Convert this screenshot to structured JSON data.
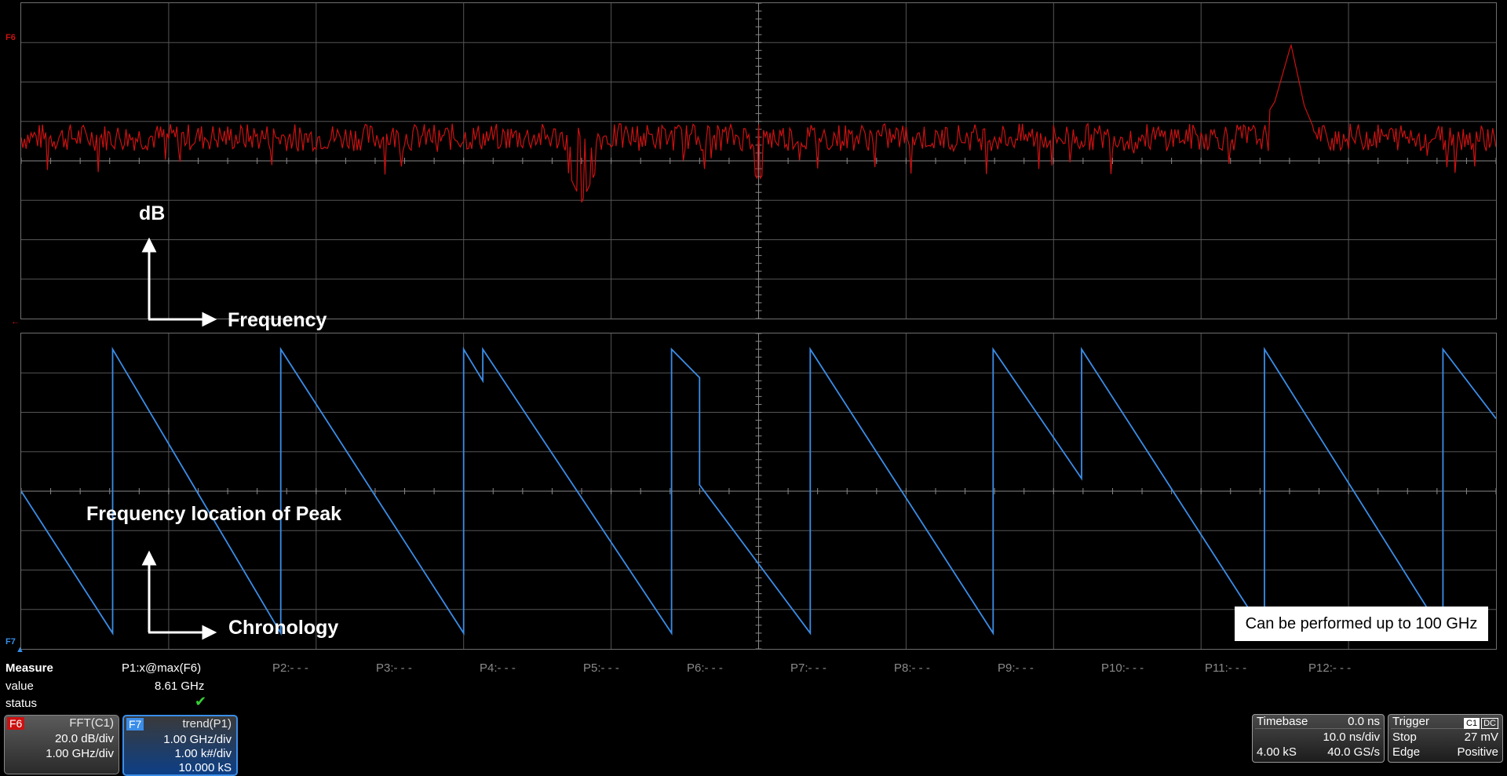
{
  "annotations": {
    "y_axis": "dB",
    "x_axis_top": "Frequency",
    "trend_label": "Frequency location of Peak",
    "x_axis_bottom": "Chronology",
    "note": "Can be performed up to 100 GHz"
  },
  "channels": {
    "f6": {
      "tag": "F6",
      "name": "FFT(C1)",
      "vdiv": "20.0 dB/div",
      "hdiv": "1.00 GHz/div",
      "color": "#cc1111"
    },
    "f7": {
      "tag": "F7",
      "name": "trend(P1)",
      "vdiv": "1.00 GHz/div",
      "hdiv": "1.00 k#/div",
      "samples": "10.000 kS",
      "color": "#3a8de8"
    }
  },
  "measure": {
    "header": "Measure",
    "row_value": "value",
    "row_status": "status",
    "p1_label": "P1:x@max(F6)",
    "p1_value": "8.61 GHz",
    "status_icon": "check-icon",
    "params": [
      "P2:- - -",
      "P3:- - -",
      "P4:- - -",
      "P5:- - -",
      "P6:- - -",
      "P7:- - -",
      "P8:- - -",
      "P9:- - -",
      "P10:- - -",
      "P11:- - -",
      "P12:- - -"
    ]
  },
  "timebase": {
    "label": "Timebase",
    "delay": "0.0 ns",
    "tdiv": "10.0 ns/div",
    "samples": "4.00 kS",
    "rate": "40.0 GS/s"
  },
  "trigger": {
    "label": "Trigger",
    "source": "C1",
    "coupling": "DC",
    "mode": "Stop",
    "level": "27 mV",
    "type": "Edge",
    "slope": "Positive"
  },
  "colors": {
    "fft_trace": "#cc1111",
    "trend_trace": "#3a8de8",
    "grid": "#6e6e6e",
    "accent_blue": "#3a8de8"
  },
  "chart_data": [
    {
      "type": "line",
      "name": "FFT(C1)",
      "xlabel": "Frequency",
      "ylabel": "dB",
      "x_range_ghz": [
        0,
        10
      ],
      "y_range_db": [
        -100,
        60
      ],
      "peak": {
        "x": 8.61,
        "y": 39
      },
      "noise_floor_db": -8,
      "series": [
        {
          "name": "F6",
          "x": [
            0.0,
            0.4,
            0.8,
            1.2,
            1.6,
            2.0,
            2.4,
            2.8,
            3.2,
            3.6,
            3.8,
            4.0,
            4.4,
            4.8,
            5.0,
            5.2,
            5.6,
            6.0,
            6.4,
            6.8,
            7.2,
            7.6,
            8.0,
            8.4,
            8.5,
            8.61,
            8.7,
            8.8,
            9.2,
            9.6,
            10.0
          ],
          "y": [
            -8,
            -6,
            -7,
            -5,
            -8,
            -6,
            -9,
            -7,
            -6,
            -8,
            -41,
            -9,
            -7,
            -6,
            -30,
            -8,
            -7,
            -6,
            -9,
            -7,
            -6,
            -8,
            -7,
            -2,
            10,
            39,
            8,
            -10,
            -7,
            -3,
            -8
          ]
        }
      ]
    },
    {
      "type": "line",
      "name": "trend(P1)",
      "xlabel": "Chronology",
      "ylabel": "",
      "x_range_kpts": [
        0,
        10
      ],
      "y_range_ghz": [
        0,
        10
      ],
      "series": [
        {
          "name": "F7",
          "x": [
            0.0,
            0.62,
            0.62,
            1.76,
            1.76,
            3.0,
            3.0,
            3.13,
            3.13,
            4.41,
            4.41,
            4.6,
            4.6,
            5.35,
            5.35,
            6.59,
            6.59,
            7.19,
            7.19,
            8.43,
            8.43,
            9.64,
            9.64,
            10.0
          ],
          "y": [
            5.0,
            0.5,
            9.5,
            0.5,
            9.5,
            0.5,
            9.5,
            8.5,
            9.5,
            0.5,
            9.5,
            8.6,
            5.2,
            0.5,
            9.5,
            0.5,
            9.5,
            5.4,
            9.5,
            0.5,
            9.5,
            0.5,
            9.5,
            7.3
          ]
        }
      ]
    }
  ]
}
